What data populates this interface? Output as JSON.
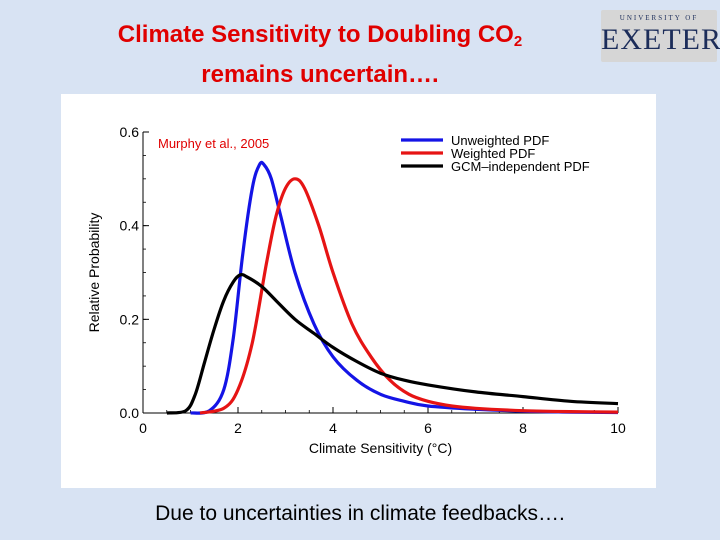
{
  "slide": {
    "title_line1_text": "Climate Sensitivity to Doubling CO",
    "title_line1_subscript": "2",
    "title_line2": "remains uncertain….",
    "logo_small": "UNIVERSITY OF",
    "logo_word": "EXETER",
    "caption": "Due to uncertainties in climate feedbacks…."
  },
  "chart_data": {
    "type": "line",
    "title": "",
    "annotation": "Murphy et al., 2005",
    "xlabel": "Climate Sensitivity (°C)",
    "ylabel": "Relative Probability",
    "xlim": [
      0,
      10
    ],
    "ylim": [
      0,
      0.6
    ],
    "xticks": [
      0,
      2,
      4,
      6,
      8,
      10
    ],
    "yticks": [
      0.0,
      0.2,
      0.4,
      0.6
    ],
    "ytick_labels": [
      "0.0",
      "0.2",
      "0.4",
      "0.6"
    ],
    "legend_position": "top-right",
    "series": [
      {
        "name": "Unweighted PDF",
        "color": "#1414e6",
        "x": [
          1.0,
          1.4,
          1.7,
          1.9,
          2.1,
          2.3,
          2.45,
          2.55,
          2.7,
          2.9,
          3.2,
          3.6,
          4.0,
          4.5,
          5.0,
          5.5,
          6.0,
          7.0,
          8.0,
          9.0,
          10.0
        ],
        "y": [
          0.0,
          0.005,
          0.05,
          0.16,
          0.34,
          0.48,
          0.53,
          0.53,
          0.5,
          0.42,
          0.3,
          0.19,
          0.12,
          0.07,
          0.04,
          0.025,
          0.015,
          0.008,
          0.004,
          0.002,
          0.001
        ]
      },
      {
        "name": "Weighted PDF",
        "color": "#e61414",
        "x": [
          1.2,
          1.7,
          2.0,
          2.3,
          2.6,
          2.8,
          3.0,
          3.2,
          3.4,
          3.7,
          4.0,
          4.4,
          4.8,
          5.2,
          5.6,
          6.0,
          6.5,
          7.0,
          8.0,
          9.0,
          10.0
        ],
        "y": [
          0.0,
          0.01,
          0.05,
          0.15,
          0.32,
          0.42,
          0.48,
          0.5,
          0.48,
          0.4,
          0.3,
          0.19,
          0.12,
          0.07,
          0.04,
          0.025,
          0.015,
          0.01,
          0.005,
          0.003,
          0.002
        ]
      },
      {
        "name": "GCM–independent PDF",
        "color": "#000000",
        "x": [
          0.5,
          0.9,
          1.1,
          1.3,
          1.5,
          1.7,
          1.9,
          2.05,
          2.2,
          2.5,
          2.8,
          3.2,
          3.6,
          4.0,
          4.5,
          5.0,
          5.5,
          6.0,
          7.0,
          8.0,
          9.0,
          10.0
        ],
        "y": [
          0.0,
          0.005,
          0.04,
          0.11,
          0.18,
          0.24,
          0.28,
          0.295,
          0.29,
          0.27,
          0.24,
          0.2,
          0.17,
          0.14,
          0.11,
          0.085,
          0.07,
          0.06,
          0.045,
          0.035,
          0.025,
          0.02
        ]
      }
    ]
  }
}
